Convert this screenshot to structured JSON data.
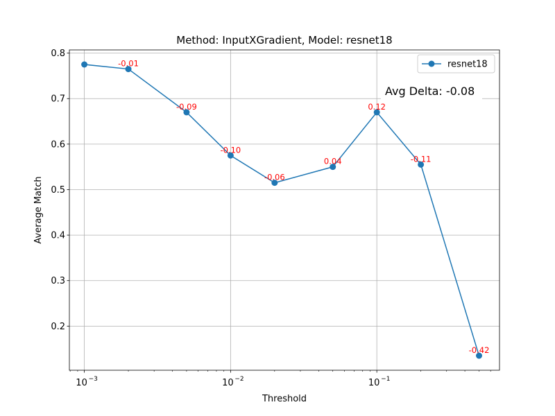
{
  "chart_data": {
    "type": "line",
    "title": "Method: InputXGradient, Model: resnet18",
    "xlabel": "Threshold",
    "ylabel": "Average Match",
    "x_scale": "log",
    "xlim": [
      0.00079,
      0.69
    ],
    "ylim": [
      0.103,
      0.807
    ],
    "grid": true,
    "legend_position": "upper right",
    "x_ticks": [
      {
        "value": 0.001,
        "base": "10",
        "exp": "−3"
      },
      {
        "value": 0.01,
        "base": "10",
        "exp": "−2"
      },
      {
        "value": 0.1,
        "base": "10",
        "exp": "−1"
      }
    ],
    "y_ticks": [
      {
        "value": 0.2,
        "label": "0.2"
      },
      {
        "value": 0.3,
        "label": "0.3"
      },
      {
        "value": 0.4,
        "label": "0.4"
      },
      {
        "value": 0.5,
        "label": "0.5"
      },
      {
        "value": 0.6,
        "label": "0.6"
      },
      {
        "value": 0.7,
        "label": "0.7"
      },
      {
        "value": 0.8,
        "label": "0.8"
      }
    ],
    "series": [
      {
        "name": "resnet18",
        "color": "#1f77b4",
        "x": [
          0.001,
          0.002,
          0.005,
          0.01,
          0.02,
          0.05,
          0.1,
          0.2,
          0.5
        ],
        "y": [
          0.775,
          0.765,
          0.67,
          0.575,
          0.515,
          0.55,
          0.67,
          0.555,
          0.135
        ]
      }
    ],
    "annotations": [
      {
        "x": 0.002,
        "y": 0.765,
        "text": "-0.01"
      },
      {
        "x": 0.005,
        "y": 0.67,
        "text": "-0.09"
      },
      {
        "x": 0.01,
        "y": 0.575,
        "text": "-0.10"
      },
      {
        "x": 0.02,
        "y": 0.515,
        "text": "-0.06"
      },
      {
        "x": 0.05,
        "y": 0.55,
        "text": "0.04"
      },
      {
        "x": 0.1,
        "y": 0.67,
        "text": "0.12"
      },
      {
        "x": 0.2,
        "y": 0.555,
        "text": "-0.11"
      },
      {
        "x": 0.5,
        "y": 0.135,
        "text": "-0.42"
      }
    ],
    "annotation_color": "#ff0000",
    "summary_text": "Avg Delta: -0.08"
  }
}
